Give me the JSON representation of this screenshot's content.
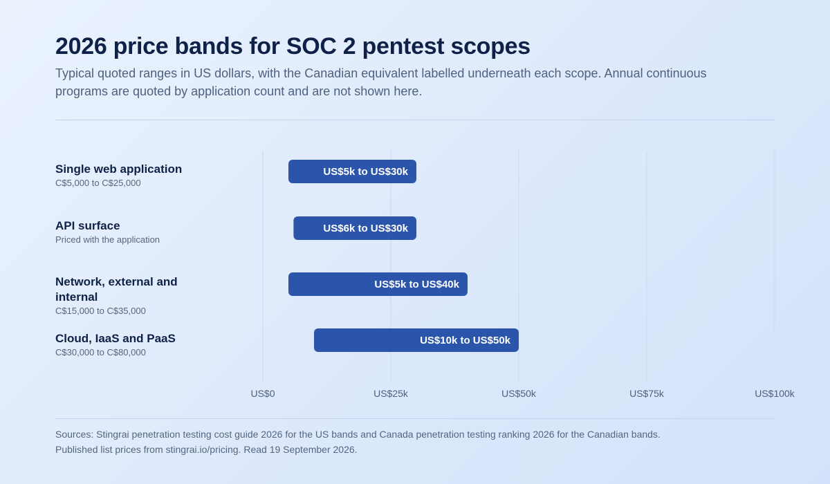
{
  "title": "2026 price bands for SOC 2 pentest scopes",
  "subtitle": "Typical quoted ranges in US dollars, with the Canadian equivalent labelled underneath each scope. Annual continuous programs are quoted by application count and are not shown here.",
  "footer": "Sources: Stingrai penetration testing cost guide 2026 for the US bands and Canada penetration testing ranking 2026 for the Canadian bands. Published list prices from stingrai.io/pricing. Read 19 September 2026.",
  "colors": {
    "bar": "#2a55ab",
    "bar_text": "#ffffff",
    "grid": "#d1def2",
    "label": "#0f2147",
    "sublabel": "#55657f"
  },
  "chart_data": {
    "type": "bar",
    "orientation": "horizontal-range",
    "xlim": [
      0,
      100000
    ],
    "ticks": [
      {
        "value": 0,
        "label": "US$0"
      },
      {
        "value": 25000,
        "label": "US$25k"
      },
      {
        "value": 50000,
        "label": "US$50k"
      },
      {
        "value": 75000,
        "label": "US$75k"
      },
      {
        "value": 100000,
        "label": "US$100k"
      }
    ],
    "grid": true,
    "rows": [
      {
        "label": "Single web application",
        "sublabel": "C$5,000 to C$25,000",
        "low": 5000,
        "high": 30000,
        "bar_label": "US$5k to US$30k"
      },
      {
        "label": "API surface",
        "sublabel": "Priced with the application",
        "low": 6000,
        "high": 30000,
        "bar_label": "US$6k to US$30k"
      },
      {
        "label": [
          "Network, external and",
          "internal"
        ],
        "sublabel": "C$15,000 to C$35,000",
        "low": 5000,
        "high": 40000,
        "bar_label": "US$5k to US$40k"
      },
      {
        "label": "Cloud, IaaS and PaaS",
        "sublabel": "C$30,000 to C$80,000",
        "low": 10000,
        "high": 50000,
        "bar_label": "US$10k to US$50k"
      }
    ]
  }
}
